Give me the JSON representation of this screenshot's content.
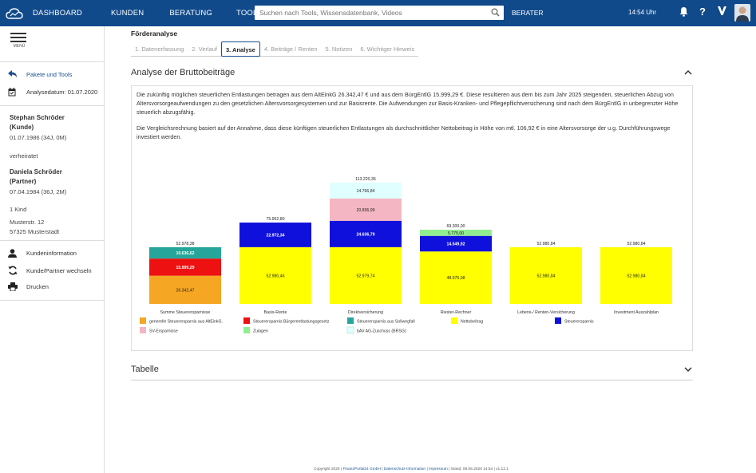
{
  "topbar": {
    "nav": [
      "DASHBOARD",
      "KUNDEN",
      "BERATUNG",
      "TOOLS"
    ],
    "search_placeholder": "Suchen nach Tools, Wissensdatenbank, Videos",
    "berater": "BERATER",
    "time": "14:54 Uhr",
    "icons": [
      "bell-icon",
      "help-icon",
      "v-logo-icon",
      "avatar"
    ]
  },
  "sidebar": {
    "menu_label": "MENÜ",
    "pakete_label": "Pakete und Tools",
    "analysedatum": "Analysedatum: 01.07.2020",
    "client1_name": "Stephan Schröder",
    "client1_role": "(Kunde)",
    "client1_birth": "01.07.1986 (34J, 0M)",
    "marital": "verheiratet",
    "client2_name": "Daniela Schröder",
    "client2_role": "(Partner)",
    "client2_birth": "07.04.1984 (36J, 2M)",
    "children": "1 Kind",
    "street": "Musterstr. 12",
    "city": "57325 Musterstadt",
    "actions": [
      "Kundeninformation",
      "Kunde/Partner wechseln",
      "Drucken"
    ]
  },
  "main": {
    "title": "Förderanalyse",
    "steps": [
      "1. Datenerfassung",
      "2. Verlauf",
      "3. Analyse",
      "4. Beiträge / Renten",
      "5. Notizen",
      "6. Wichtiger Hinweis"
    ],
    "active_step": 2,
    "section1_title": "Analyse der Bruttobeiträge",
    "para1": "Die zukünftig möglichen steuerlichen Entlastungen betragen aus dem AltEinkG 26.342,47 € und aus dem BürgEntlG 15.999,29 €. Diese resultieren aus dem bis zum Jahr 2025 steigenden, steuerlichen Abzug von Altersvorsorgeaufwendungen zu den gesetzlichen Altersvorsorgesystemen und zur Basisrente. Die Aufwendungen zur Basis-Kranken- und Pflegepflichtversicherung sind nach dem BürgEntlG in unbegrenzter Höhe steuerlich abzugsfähig.",
    "para2": "Die Vergleichsrechnung basiert auf der Annahme, dass diese künftigen steuerlichen Entlastungen als durchschnittlicher Nettobeitrag in Höhe von mtl. 106,92 € in eine Altersvorsorge der u.g. Durchführungswege investiert werden.",
    "section2_title": "Tabelle"
  },
  "footer": {
    "copyright": "Copyright 2020 | ",
    "company": "FinanzPortal24 GmbH",
    "sep1": " | ",
    "datenschutz": "Datenschutz-Information",
    "sep2": " | ",
    "impressum": "Impressum",
    "stand": " | Stand: 08.05.2020 14:54 | v1.12.1"
  },
  "colors": {
    "header_bg": "#114a8b",
    "orange": "#f5a623",
    "red": "#ee1111",
    "teal": "#26a69a",
    "yellow": "#ffff00",
    "blue": "#1010dd",
    "pink": "#f4b6c2",
    "lightgreen": "#90ee90",
    "lightcyan": "#e0ffff"
  },
  "chart_data": {
    "type": "bar",
    "stacked": true,
    "categories": [
      "Summe Steuerersparnisse",
      "Basis-Rente",
      "Direktversicherung",
      "Riester-Rechner",
      "Lebens-/ Renten-Versicherung",
      "Investment Auszahlplan"
    ],
    "series": [
      {
        "name": "generelle Steuerersparnis aus AltEinkG.",
        "color": "#f5a623",
        "values": [
          26342.47,
          0,
          0,
          0,
          0,
          0
        ],
        "labels": [
          "26.342,47",
          "",
          "",
          "",
          "",
          ""
        ]
      },
      {
        "name": "Steuerersparnis Bürgerentlastungsgesetz",
        "color": "#ee1111",
        "values": [
          15999.29,
          0,
          0,
          0,
          0,
          0
        ],
        "labels": [
          "15.999,29",
          "",
          "",
          "",
          "",
          ""
        ]
      },
      {
        "name": "Steuerersparnis aus Soliwegfall",
        "color": "#26a69a",
        "values": [
          10636.62,
          0,
          0,
          0,
          0,
          0
        ],
        "labels": [
          "10.636,62",
          "",
          "",
          "",
          "",
          ""
        ]
      },
      {
        "name": "Nettobeitrag",
        "color": "#ffff00",
        "values": [
          0,
          52980.46,
          52979.74,
          48975.08,
          52980.84,
          52980.84
        ],
        "labels": [
          "",
          "52.980,46",
          "52.979,74",
          "48.975,08",
          "52.980,84",
          "52.980,84"
        ]
      },
      {
        "name": "Steuerersparnis",
        "color": "#1010dd",
        "values": [
          0,
          22972.34,
          24636.79,
          14549.92,
          0,
          0
        ],
        "labels": [
          "",
          "22.972,34",
          "24.636,79",
          "14.549,92",
          "",
          ""
        ]
      },
      {
        "name": "SV-Ersparnisse",
        "color": "#f4b6c2",
        "values": [
          0,
          0,
          20836.99,
          0,
          0,
          0
        ],
        "labels": [
          "",
          "",
          "20.836,99",
          "",
          "",
          ""
        ]
      },
      {
        "name": "Zulagen",
        "color": "#90ee90",
        "values": [
          0,
          0,
          0,
          5775.0,
          0,
          0
        ],
        "labels": [
          "",
          "",
          "",
          "5.775,00",
          "",
          ""
        ]
      },
      {
        "name": "bAV AG-Zuschuss (BRSG)",
        "color": "#e0ffff",
        "values": [
          0,
          0,
          14766.84,
          0,
          0,
          0
        ],
        "labels": [
          "",
          "",
          "14.766,84",
          "",
          "",
          ""
        ]
      }
    ],
    "totals": [
      "52.978,38",
      "75.952,80",
      "113.220,36",
      "69.300,00",
      "52.980,84",
      "52.980,84"
    ],
    "ylim": [
      0,
      113220.36
    ],
    "legend_position": "bottom"
  }
}
